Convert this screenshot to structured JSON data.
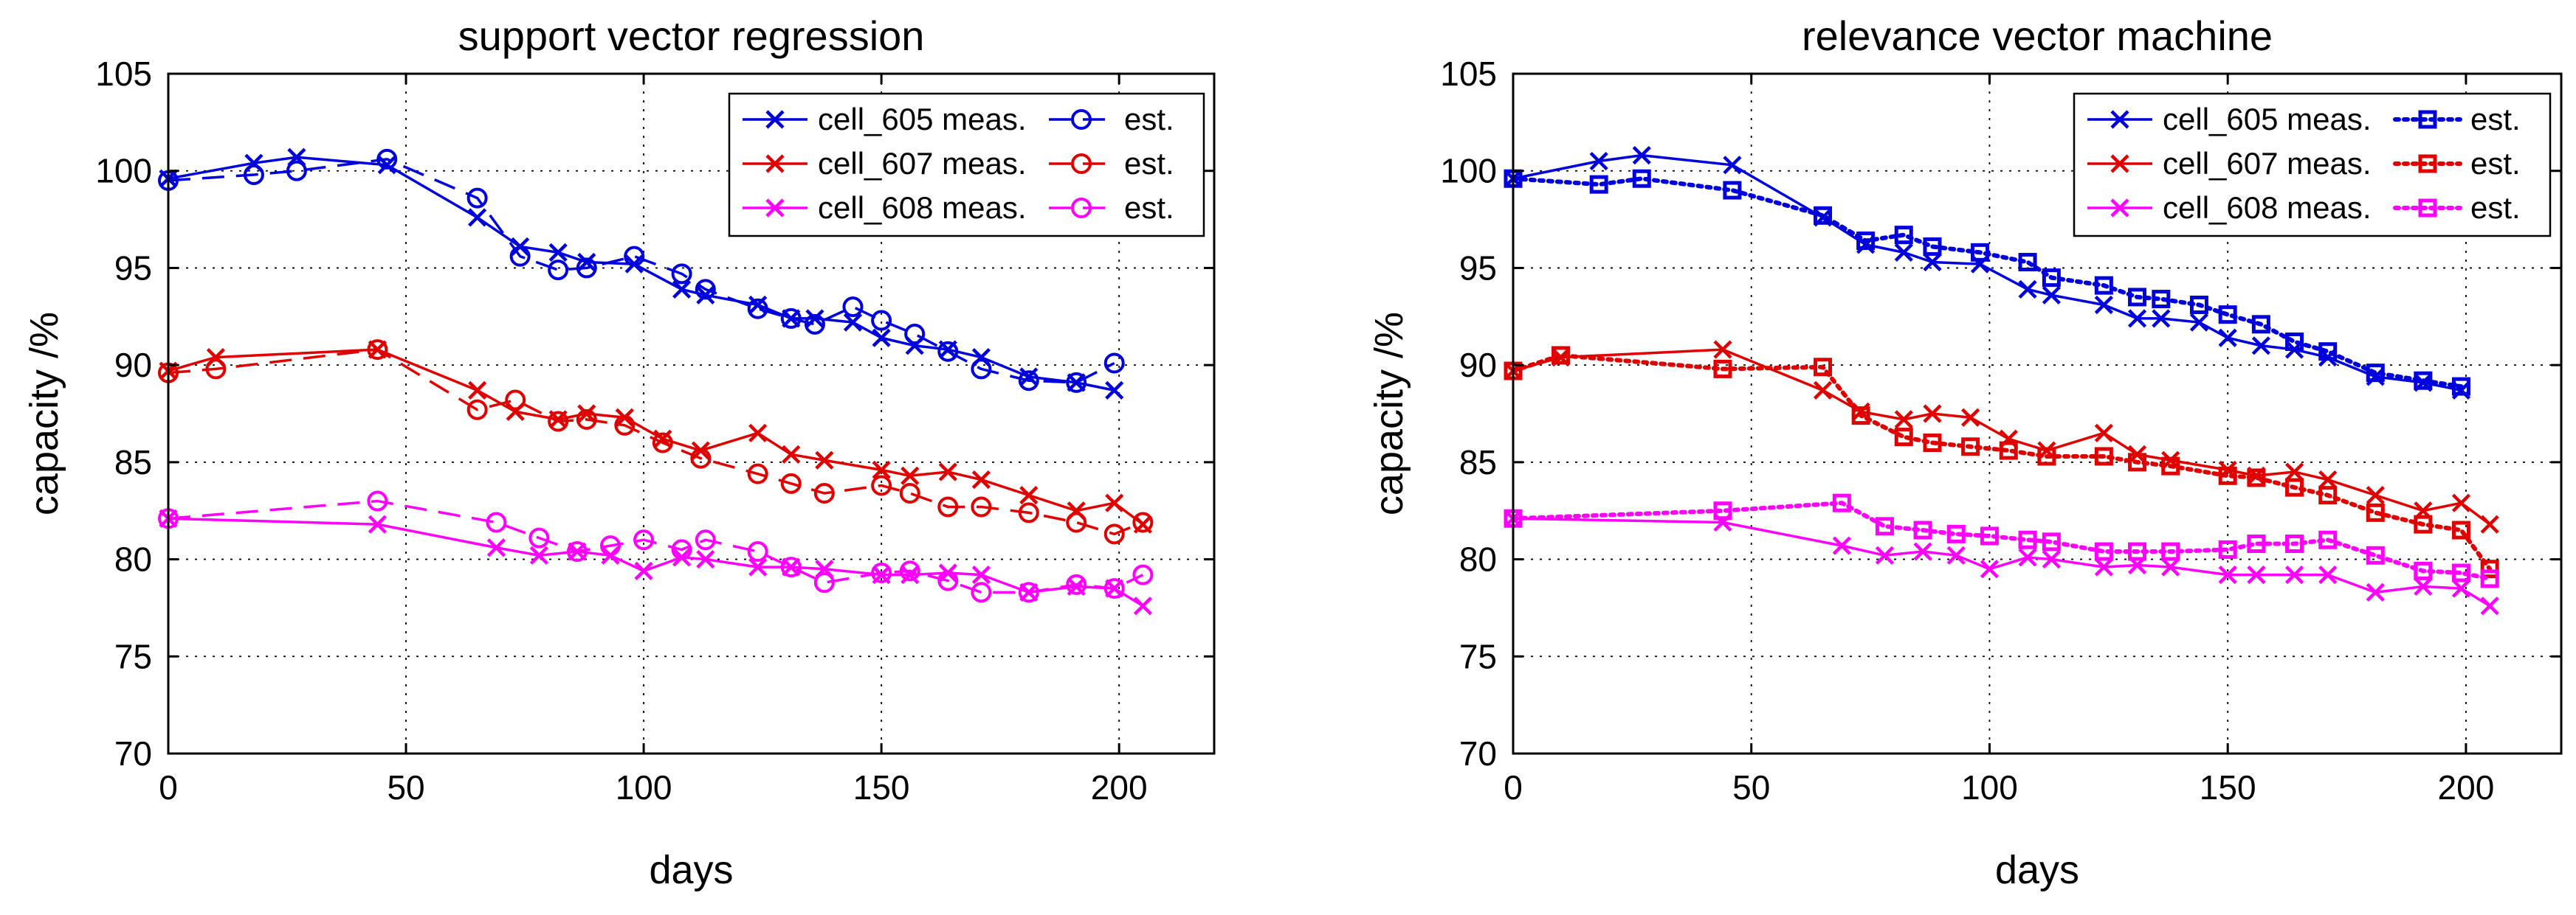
{
  "chart_data": [
    {
      "type": "line",
      "title": "support vector regression",
      "xlabel": "days",
      "ylabel": "capacity /%",
      "xlim": [
        0,
        220
      ],
      "ylim": [
        70,
        105
      ],
      "xticks": [
        0,
        50,
        100,
        150,
        200
      ],
      "yticks": [
        70,
        75,
        80,
        85,
        90,
        95,
        100,
        105
      ],
      "grid": true,
      "legend_position": "top-right",
      "series": [
        {
          "name": "cell_605 meas.",
          "color": "#0000dd",
          "style": "solid",
          "marker": "x",
          "x": [
            0,
            18,
            27,
            46,
            65,
            74,
            82,
            88,
            98,
            108,
            113,
            124,
            131,
            136,
            144,
            150,
            157,
            164,
            171,
            181,
            191,
            199
          ],
          "y": [
            99.6,
            100.4,
            100.7,
            100.3,
            97.6,
            96.1,
            95.8,
            95.3,
            95.2,
            93.9,
            93.6,
            93.1,
            92.4,
            92.4,
            92.2,
            91.4,
            91.0,
            90.8,
            90.4,
            89.4,
            89.1,
            88.7
          ]
        },
        {
          "name": "est.",
          "color": "#0000dd",
          "style": "dashed",
          "marker": "o",
          "x": [
            0,
            18,
            27,
            46,
            65,
            74,
            82,
            88,
            98,
            108,
            113,
            124,
            131,
            136,
            144,
            150,
            157,
            164,
            171,
            181,
            191,
            199
          ],
          "y": [
            99.5,
            99.8,
            100.0,
            100.6,
            98.6,
            95.6,
            94.9,
            95.0,
            95.6,
            94.7,
            93.9,
            92.9,
            92.4,
            92.1,
            93.0,
            92.3,
            91.6,
            90.7,
            89.8,
            89.2,
            89.1,
            90.1
          ]
        },
        {
          "name": "cell_607 meas.",
          "color": "#e00000",
          "style": "solid",
          "marker": "x",
          "x": [
            0,
            10,
            44,
            65,
            73,
            82,
            88,
            96,
            104,
            112,
            124,
            131,
            138,
            150,
            156,
            164,
            171,
            181,
            191,
            199,
            205
          ],
          "y": [
            89.7,
            90.4,
            90.8,
            88.7,
            87.6,
            87.2,
            87.5,
            87.3,
            86.2,
            85.6,
            86.5,
            85.4,
            85.1,
            84.6,
            84.3,
            84.5,
            84.1,
            83.3,
            82.5,
            82.9,
            81.8
          ]
        },
        {
          "name": "est.",
          "color": "#e00000",
          "style": "dashed",
          "marker": "o",
          "x": [
            0,
            10,
            44,
            65,
            73,
            82,
            88,
            96,
            104,
            112,
            124,
            131,
            138,
            150,
            156,
            164,
            171,
            181,
            191,
            199,
            205
          ],
          "y": [
            89.6,
            89.8,
            90.8,
            87.7,
            88.2,
            87.1,
            87.2,
            86.9,
            86.0,
            85.2,
            84.4,
            83.9,
            83.4,
            83.8,
            83.4,
            82.7,
            82.7,
            82.4,
            81.9,
            81.3,
            81.9
          ]
        },
        {
          "name": "cell_608 meas.",
          "color": "#ff00ff",
          "style": "solid",
          "marker": "x",
          "x": [
            0,
            44,
            69,
            78,
            86,
            93,
            100,
            108,
            113,
            124,
            131,
            138,
            150,
            156,
            164,
            171,
            181,
            191,
            199,
            205
          ],
          "y": [
            82.1,
            81.8,
            80.6,
            80.2,
            80.4,
            80.2,
            79.4,
            80.1,
            80.0,
            79.6,
            79.6,
            79.5,
            79.2,
            79.2,
            79.3,
            79.2,
            78.3,
            78.6,
            78.5,
            77.6
          ]
        },
        {
          "name": "est.",
          "color": "#ff00ff",
          "style": "dashed",
          "marker": "o",
          "x": [
            0,
            44,
            69,
            78,
            86,
            93,
            100,
            108,
            113,
            124,
            131,
            138,
            150,
            156,
            164,
            171,
            181,
            191,
            199,
            205
          ],
          "y": [
            82.1,
            83.0,
            81.9,
            81.1,
            80.4,
            80.7,
            81.0,
            80.5,
            81.0,
            80.4,
            79.6,
            78.8,
            79.3,
            79.4,
            78.9,
            78.3,
            78.3,
            78.7,
            78.5,
            79.2
          ]
        }
      ]
    },
    {
      "type": "line",
      "title": "relevance vector machine",
      "xlabel": "days",
      "ylabel": "capacity /%",
      "xlim": [
        0,
        220
      ],
      "ylim": [
        70,
        105
      ],
      "xticks": [
        0,
        50,
        100,
        150,
        200
      ],
      "yticks": [
        70,
        75,
        80,
        85,
        90,
        95,
        100,
        105
      ],
      "grid": true,
      "legend_position": "top-right",
      "series": [
        {
          "name": "cell_605 meas.",
          "color": "#0000dd",
          "style": "solid",
          "marker": "x",
          "x": [
            0,
            18,
            27,
            46,
            65,
            74,
            82,
            88,
            98,
            108,
            113,
            124,
            131,
            136,
            144,
            150,
            157,
            164,
            171,
            181,
            191,
            199
          ],
          "y": [
            99.6,
            100.5,
            100.8,
            100.3,
            97.6,
            96.2,
            95.8,
            95.3,
            95.2,
            93.9,
            93.6,
            93.1,
            92.4,
            92.4,
            92.2,
            91.4,
            91.0,
            90.8,
            90.4,
            89.4,
            89.1,
            88.7
          ]
        },
        {
          "name": "est.",
          "color": "#0000dd",
          "style": "dotted",
          "marker": "s",
          "x": [
            0,
            18,
            27,
            46,
            65,
            74,
            82,
            88,
            98,
            108,
            113,
            124,
            131,
            136,
            144,
            150,
            157,
            164,
            171,
            181,
            191,
            199
          ],
          "y": [
            99.6,
            99.3,
            99.6,
            99.0,
            97.7,
            96.4,
            96.7,
            96.1,
            95.8,
            95.3,
            94.5,
            94.1,
            93.5,
            93.4,
            93.1,
            92.6,
            92.1,
            91.2,
            90.7,
            89.6,
            89.2,
            88.9
          ]
        },
        {
          "name": "cell_607 meas.",
          "color": "#e00000",
          "style": "solid",
          "marker": "x",
          "x": [
            0,
            10,
            44,
            65,
            73,
            82,
            88,
            96,
            104,
            112,
            124,
            131,
            138,
            150,
            156,
            164,
            171,
            181,
            191,
            199,
            205
          ],
          "y": [
            89.7,
            90.4,
            90.8,
            88.7,
            87.6,
            87.2,
            87.5,
            87.3,
            86.2,
            85.6,
            86.5,
            85.4,
            85.1,
            84.6,
            84.3,
            84.5,
            84.1,
            83.3,
            82.5,
            82.9,
            81.8
          ]
        },
        {
          "name": "est.",
          "color": "#e00000",
          "style": "dotted",
          "marker": "s",
          "x": [
            0,
            10,
            44,
            65,
            73,
            82,
            88,
            96,
            104,
            112,
            124,
            131,
            138,
            150,
            156,
            164,
            171,
            181,
            191,
            199,
            205
          ],
          "y": [
            89.7,
            90.5,
            89.8,
            89.9,
            87.4,
            86.3,
            86.0,
            85.8,
            85.6,
            85.3,
            85.3,
            85.0,
            84.8,
            84.3,
            84.2,
            83.7,
            83.3,
            82.4,
            81.8,
            81.5,
            79.5
          ]
        },
        {
          "name": "cell_608 meas.",
          "color": "#ff00ff",
          "style": "solid",
          "marker": "x",
          "x": [
            0,
            44,
            69,
            78,
            86,
            93,
            100,
            108,
            113,
            124,
            131,
            138,
            150,
            156,
            164,
            171,
            181,
            191,
            199,
            205
          ],
          "y": [
            82.1,
            81.9,
            80.7,
            80.2,
            80.4,
            80.2,
            79.5,
            80.1,
            80.0,
            79.6,
            79.7,
            79.6,
            79.2,
            79.2,
            79.2,
            79.2,
            78.3,
            78.6,
            78.5,
            77.6
          ]
        },
        {
          "name": "est.",
          "color": "#ff00ff",
          "style": "dotted",
          "marker": "s",
          "x": [
            0,
            44,
            69,
            78,
            86,
            93,
            100,
            108,
            113,
            124,
            131,
            138,
            150,
            156,
            164,
            171,
            181,
            191,
            199,
            205
          ],
          "y": [
            82.1,
            82.5,
            82.9,
            81.7,
            81.5,
            81.3,
            81.2,
            81.0,
            80.9,
            80.4,
            80.4,
            80.4,
            80.5,
            80.8,
            80.8,
            81.0,
            80.2,
            79.4,
            79.3,
            79.0
          ]
        }
      ]
    }
  ]
}
